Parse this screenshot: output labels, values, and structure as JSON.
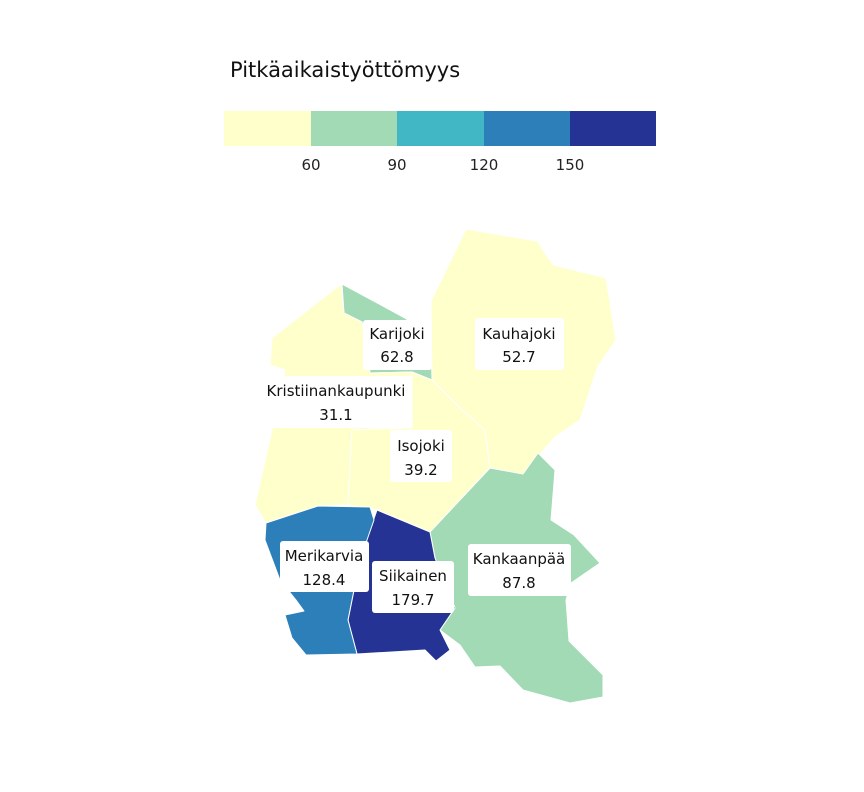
{
  "legend": {
    "title": "Pitkäaikaistyöttömyys",
    "bins": [
      {
        "color": "#ffffcc"
      },
      {
        "color": "#a1dab4"
      },
      {
        "color": "#41b6c4"
      },
      {
        "color": "#2c7fb8"
      },
      {
        "color": "#253494"
      }
    ],
    "ticks": [
      "60",
      "90",
      "120",
      "150"
    ]
  },
  "regions": [
    {
      "key": "kristiinankaupunki",
      "name": "Kristiinankaupunki",
      "value": "31.1",
      "color": "#ffffcc"
    },
    {
      "key": "karijoki",
      "name": "Karijoki",
      "value": "62.8",
      "color": "#a1dab4"
    },
    {
      "key": "kauhajoki",
      "name": "Kauhajoki",
      "value": "52.7",
      "color": "#ffffcc"
    },
    {
      "key": "isojoki",
      "name": "Isojoki",
      "value": "39.2",
      "color": "#ffffcc"
    },
    {
      "key": "merikarvia",
      "name": "Merikarvia",
      "value": "128.4",
      "color": "#2c7fb8"
    },
    {
      "key": "siikainen",
      "name": "Siikainen",
      "value": "179.7",
      "color": "#253494"
    },
    {
      "key": "kankaanpaa",
      "name": "Kankaanpää",
      "value": "87.8",
      "color": "#a1dab4"
    }
  ]
}
